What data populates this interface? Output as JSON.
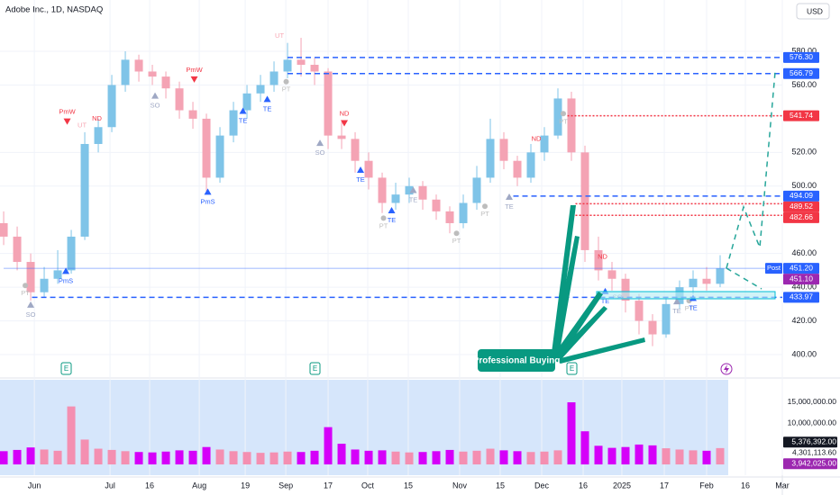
{
  "chart_data": {
    "type": "candlestick",
    "title": "Adobe Inc., 1D, NASDAQ",
    "currency": "USD",
    "up_color": "#7fc4e8",
    "down_color": "#f4a3b4",
    "grid": true,
    "open": [
      478,
      470,
      455,
      437,
      445,
      450,
      470,
      525,
      535,
      560,
      575,
      568,
      565,
      558,
      545,
      540,
      505,
      530,
      545,
      555,
      560,
      568,
      575,
      572,
      568,
      530,
      528,
      515,
      505,
      490,
      495,
      500,
      492,
      485,
      478,
      490,
      505,
      528,
      515,
      505,
      520,
      530,
      552,
      520,
      462,
      450,
      445,
      432,
      420,
      412,
      430,
      440,
      445,
      442
    ],
    "high": [
      485,
      476,
      460,
      452,
      462,
      474,
      532,
      540,
      566,
      580,
      578,
      572,
      568,
      562,
      550,
      543,
      535,
      550,
      560,
      566,
      574,
      585,
      588,
      576,
      570,
      538,
      532,
      520,
      508,
      502,
      505,
      503,
      495,
      488,
      495,
      512,
      540,
      532,
      518,
      525,
      535,
      558,
      556,
      524,
      470,
      455,
      448,
      436,
      424,
      434,
      444,
      450,
      452,
      459
    ],
    "low": [
      465,
      450,
      432,
      434,
      442,
      448,
      468,
      520,
      532,
      556,
      562,
      560,
      552,
      540,
      534,
      497,
      502,
      526,
      540,
      550,
      556,
      564,
      565,
      560,
      522,
      522,
      508,
      498,
      484,
      486,
      490,
      486,
      480,
      472,
      475,
      486,
      502,
      510,
      500,
      502,
      515,
      528,
      515,
      455,
      444,
      438,
      425,
      412,
      405,
      410,
      427,
      436,
      438,
      440
    ],
    "close": [
      470,
      455,
      437,
      445,
      450,
      470,
      525,
      535,
      560,
      575,
      568,
      565,
      558,
      545,
      540,
      505,
      530,
      545,
      555,
      560,
      568,
      575,
      572,
      568,
      530,
      528,
      515,
      505,
      490,
      495,
      500,
      492,
      485,
      478,
      490,
      505,
      528,
      515,
      505,
      520,
      530,
      552,
      520,
      462,
      450,
      445,
      432,
      420,
      412,
      430,
      440,
      445,
      442,
      451.1
    ],
    "xlim": [
      -0.27,
      57.6
    ],
    "xticks": [
      {
        "value": 2.27,
        "label": "Jun"
      },
      {
        "value": 7.87,
        "label": "Jul"
      },
      {
        "value": 10.8,
        "label": "16"
      },
      {
        "value": 14.47,
        "label": "Aug"
      },
      {
        "value": 17.87,
        "label": "19"
      },
      {
        "value": 20.87,
        "label": "Sep"
      },
      {
        "value": 24,
        "label": "17"
      },
      {
        "value": 26.93,
        "label": "Oct"
      },
      {
        "value": 29.93,
        "label": "15"
      },
      {
        "value": 33.73,
        "label": "Nov"
      },
      {
        "value": 36.73,
        "label": "15"
      },
      {
        "value": 39.8,
        "label": "Dec"
      },
      {
        "value": 42.87,
        "label": "16"
      },
      {
        "value": 45.73,
        "label": "2025"
      },
      {
        "value": 48.87,
        "label": "17"
      },
      {
        "value": 52,
        "label": "Feb"
      },
      {
        "value": 54.87,
        "label": "16"
      },
      {
        "value": 57.6,
        "label": "Mar"
      }
    ],
    "ylim": [
      387.18,
      610.45
    ],
    "yticks": [
      {
        "value": 400,
        "label": "400.00"
      },
      {
        "value": 420,
        "label": "420.00"
      },
      {
        "value": 440,
        "label": "440.00"
      },
      {
        "value": 460,
        "label": "460.00"
      },
      {
        "value": 500,
        "label": "500.00"
      },
      {
        "value": 520,
        "label": "520.00"
      },
      {
        "value": 560,
        "label": "560.00"
      },
      {
        "value": 580,
        "label": "580.00"
      }
    ],
    "levels": [
      {
        "value": 576.3,
        "label": "576.30",
        "color": "#2962ff",
        "style": "dashed",
        "from": 21
      },
      {
        "value": 566.79,
        "label": "566.79",
        "color": "#2962ff",
        "style": "dashed",
        "from": 21
      },
      {
        "value": 541.74,
        "label": "541.74",
        "color": "#f23645",
        "style": "dotted",
        "from": 41.7
      },
      {
        "value": 494.09,
        "label": "494.09",
        "color": "#2962ff",
        "style": "dashed",
        "from": 37.7
      },
      {
        "value": 489.52,
        "label": "489.52",
        "color": "#f23645",
        "style": "dotted",
        "from": 42.3
      },
      {
        "value": 482.66,
        "label": "482.66",
        "color": "#f23645",
        "style": "dotted",
        "from": 42.3
      },
      {
        "value": 451.2,
        "label": "451.20",
        "color": "#2962ff",
        "style": "solid",
        "from": 0,
        "tag": "Post"
      },
      {
        "value": 451.1,
        "label": "451.10",
        "color": "#9c27b0",
        "style": "none",
        "from": 53
      },
      {
        "value": 433.97,
        "label": "433.97",
        "color": "#2962ff",
        "style": "dashed",
        "from": 2.1
      }
    ],
    "annotations": [
      {
        "text": "PmW",
        "x": 4.7,
        "y": 538,
        "marker": "down",
        "color": "#f23645"
      },
      {
        "text": "UT",
        "x": 5.8,
        "y": 536,
        "marker": "none",
        "color": "#f7a7b3"
      },
      {
        "text": "ND",
        "x": 6.9,
        "y": 540,
        "marker": "none",
        "color": "#f23645"
      },
      {
        "text": "SO",
        "x": 11.2,
        "y": 554,
        "marker": "up",
        "color": "#9fa8c4"
      },
      {
        "text": "PmW",
        "x": 14.1,
        "y": 563,
        "marker": "down",
        "color": "#f23645"
      },
      {
        "text": "PmS",
        "x": 15.1,
        "y": 497,
        "marker": "up",
        "color": "#2962ff"
      },
      {
        "text": "TE",
        "x": 17.7,
        "y": 545,
        "marker": "up",
        "color": "#2962ff"
      },
      {
        "text": "TE",
        "x": 19.5,
        "y": 552,
        "marker": "up",
        "color": "#2962ff"
      },
      {
        "text": "UT",
        "x": 20.4,
        "y": 589,
        "marker": "none",
        "color": "#f7a7b3"
      },
      {
        "text": "PT",
        "x": 20.9,
        "y": 562,
        "marker": "dot",
        "color": "#bdbdbd"
      },
      {
        "text": "SO",
        "x": 23.4,
        "y": 526,
        "marker": "up",
        "color": "#9fa8c4"
      },
      {
        "text": "ND",
        "x": 25.2,
        "y": 537,
        "marker": "down",
        "color": "#f23645"
      },
      {
        "text": "TE",
        "x": 26.4,
        "y": 510,
        "marker": "up",
        "color": "#2962ff"
      },
      {
        "text": "PT",
        "x": 28.1,
        "y": 481,
        "marker": "dot",
        "color": "#bdbdbd"
      },
      {
        "text": "TE",
        "x": 28.7,
        "y": 486,
        "marker": "up",
        "color": "#2962ff"
      },
      {
        "text": "TE",
        "x": 30.3,
        "y": 498,
        "marker": "up",
        "color": "#9fa8c4"
      },
      {
        "text": "PT",
        "x": 33.5,
        "y": 472,
        "marker": "dot",
        "color": "#bdbdbd"
      },
      {
        "text": "PT",
        "x": 35.6,
        "y": 488,
        "marker": "dot",
        "color": "#bdbdbd"
      },
      {
        "text": "TE",
        "x": 37.4,
        "y": 494,
        "marker": "up",
        "color": "#9fa8c4"
      },
      {
        "text": "ND",
        "x": 39.4,
        "y": 528,
        "marker": "none",
        "color": "#f23645"
      },
      {
        "text": "PT",
        "x": 41.4,
        "y": 543,
        "marker": "dot",
        "color": "#bdbdbd"
      },
      {
        "text": "PmS",
        "x": 4.6,
        "y": 450,
        "marker": "up",
        "color": "#2962ff"
      },
      {
        "text": "SO",
        "x": 2,
        "y": 430,
        "marker": "up",
        "color": "#9fa8c4"
      },
      {
        "text": "PT",
        "x": 1.6,
        "y": 441,
        "marker": "dot",
        "color": "#bdbdbd"
      },
      {
        "text": "ND",
        "x": 44.3,
        "y": 458,
        "marker": "none",
        "color": "#f23645"
      },
      {
        "text": "TE",
        "x": 44.5,
        "y": 438,
        "marker": "up",
        "color": "#2962ff"
      },
      {
        "text": "SO",
        "x": 45.4,
        "y": 434,
        "marker": "none",
        "color": "#9fa8c4"
      },
      {
        "text": "TE",
        "x": 49.8,
        "y": 432,
        "marker": "up",
        "color": "#9fa8c4"
      },
      {
        "text": "PT",
        "x": 50.7,
        "y": 432,
        "marker": "dot",
        "color": "#bdbdbd"
      },
      {
        "text": "TE",
        "x": 51,
        "y": 434,
        "marker": "up",
        "color": "#2962ff"
      }
    ],
    "callout": "Professional Buying",
    "earnings_marker": "E",
    "volume": {
      "values": [
        3200000,
        3500000,
        4100000,
        3600000,
        3300000,
        14000000,
        6000000,
        3800000,
        3500000,
        3200000,
        3000000,
        2900000,
        3100000,
        3400000,
        3300000,
        4200000,
        3600000,
        3200000,
        3000000,
        2800000,
        2900000,
        3100000,
        3000000,
        3300000,
        9000000,
        5000000,
        3600000,
        3300000,
        3400000,
        3100000,
        2900000,
        3000000,
        3200000,
        3500000,
        3100000,
        3300000,
        3800000,
        3400000,
        3200000,
        3000000,
        3100000,
        3400000,
        15000000,
        8000000,
        4500000,
        4000000,
        4200000,
        4800000,
        4600000,
        3900000,
        3600000,
        3400000,
        3300000,
        3942025
      ],
      "up_color": "#f48fb1",
      "down_color": "#d500f9",
      "ylim": [
        -2600000,
        20430000
      ],
      "yticks": [
        {
          "value": 10000000,
          "label": "10,000,000.00"
        },
        {
          "value": 15000000,
          "label": "15,000,000.00"
        }
      ],
      "levels": [
        {
          "value": 5376392,
          "label": "5,376,392.00",
          "color": "#131722"
        },
        {
          "value": 4301113.6,
          "label": "4,301,113.60",
          "color": "none"
        },
        {
          "value": 3942025,
          "label": "3,942,025.00",
          "color": "#9c27b0"
        }
      ]
    }
  }
}
